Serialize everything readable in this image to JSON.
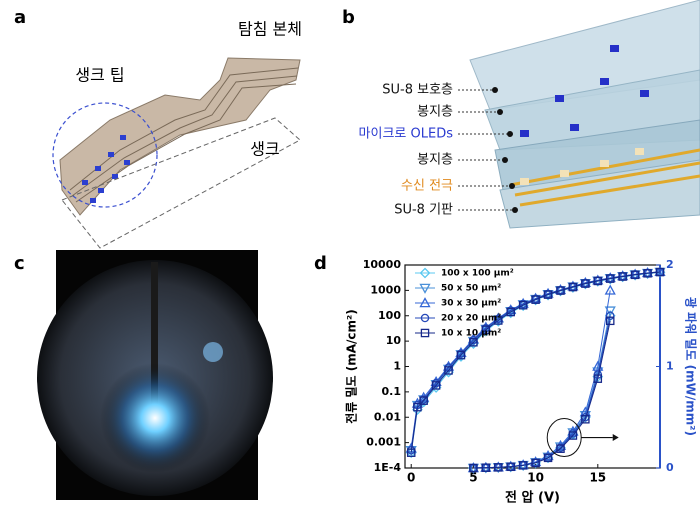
{
  "panels": {
    "a": {
      "label": "a",
      "probe_body": "탐침 본체",
      "shank_tip": "생크 팁",
      "shank": "생크"
    },
    "b": {
      "label": "b",
      "layers": [
        "SU-8 보호층",
        "봉지층",
        "마이크로 OLEDs",
        "봉지층",
        "수신 전극",
        "SU-8 기판"
      ]
    },
    "c": {
      "label": "c"
    },
    "d": {
      "label": "d"
    }
  },
  "chart_data": {
    "type": "line",
    "x_label": "전 압 (V)",
    "y_label": "전류 밀도 (mA/cm²)",
    "y2_label": "광 파워 밀도 (mW/mm²)",
    "log_scale_y": true,
    "xlim": [
      -0.5,
      20
    ],
    "xticks": [
      0,
      5,
      10,
      15
    ],
    "ylim": [
      0.0001,
      10000
    ],
    "yticks": [
      {
        "value": 0.0001,
        "label": "1E-4"
      },
      0.001,
      0.01,
      0.1,
      1,
      10,
      100,
      1000,
      10000
    ],
    "y2lim": [
      0,
      2
    ],
    "y2ticks": [
      0,
      1,
      2
    ],
    "legend": "upper-left",
    "x": [
      0,
      0.5,
      1,
      2,
      3,
      4,
      5,
      6,
      7,
      8,
      9,
      10,
      11,
      12,
      13,
      14,
      15,
      16,
      17,
      18,
      19,
      20
    ],
    "series": [
      {
        "name": "100 x 100 μm²",
        "color": "#5bc8f0",
        "marker": "diamond",
        "values": [
          0.0004,
          0.02,
          0.04,
          0.15,
          0.6,
          2.5,
          8,
          25,
          60,
          130,
          250,
          420,
          650,
          950,
          1300,
          1800,
          2300,
          2800,
          3400,
          4000,
          4600,
          5200
        ],
        "y2_values": [
          null,
          null,
          null,
          null,
          null,
          null,
          0,
          0.003,
          0.006,
          0.012,
          0.025,
          0.05,
          0.1,
          0.2,
          0.33,
          0.5,
          0.9,
          1.5,
          null,
          null,
          null,
          null
        ]
      },
      {
        "name": "50 x 50 μm²",
        "color": "#4a90d9",
        "marker": "triangle-down",
        "values": [
          0.0005,
          0.03,
          0.05,
          0.2,
          0.8,
          3,
          10,
          30,
          70,
          150,
          280,
          450,
          700,
          1000,
          1400,
          1900,
          2400,
          3000,
          3600,
          4200,
          4800,
          5300
        ],
        "y2_values": [
          null,
          null,
          null,
          null,
          null,
          null,
          0,
          0.003,
          0.007,
          0.014,
          0.028,
          0.055,
          0.11,
          0.21,
          0.35,
          0.52,
          0.95,
          1.55,
          null,
          null,
          null,
          null
        ]
      },
      {
        "name": "30 x 30 μm²",
        "color": "#3567d6",
        "marker": "triangle-up",
        "values": [
          0.0006,
          0.035,
          0.06,
          0.25,
          1,
          3.5,
          12,
          35,
          80,
          170,
          300,
          480,
          750,
          1050,
          1450,
          2000,
          2500,
          3100,
          3700,
          4300,
          4900,
          5400
        ],
        "y2_values": [
          null,
          null,
          null,
          null,
          null,
          null,
          0,
          0.004,
          0.008,
          0.015,
          0.03,
          0.06,
          0.12,
          0.22,
          0.36,
          0.55,
          1,
          1.75,
          null,
          null,
          null,
          null
        ]
      },
      {
        "name": "20 x 20 μm²",
        "color": "#2548b8",
        "marker": "circle",
        "values": [
          0.0005,
          0.03,
          0.05,
          0.22,
          0.9,
          3.2,
          11,
          32,
          75,
          160,
          290,
          460,
          720,
          1020,
          1420,
          1950,
          2450,
          3050,
          3650,
          4250,
          4850,
          5350
        ],
        "y2_values": [
          null,
          null,
          null,
          null,
          null,
          null,
          0,
          0.003,
          0.007,
          0.013,
          0.027,
          0.052,
          0.1,
          0.2,
          0.34,
          0.5,
          0.92,
          1.5,
          null,
          null,
          null,
          null
        ]
      },
      {
        "name": "10 x 10 μm²",
        "color": "#16288a",
        "marker": "square",
        "values": [
          0.0004,
          0.025,
          0.045,
          0.18,
          0.7,
          2.8,
          9,
          28,
          65,
          140,
          260,
          430,
          680,
          980,
          1350,
          1850,
          2350,
          2900,
          3500,
          4100,
          4700,
          5250
        ],
        "y2_values": [
          null,
          null,
          null,
          null,
          null,
          null,
          0,
          0.003,
          0.006,
          0.012,
          0.026,
          0.05,
          0.1,
          0.19,
          0.32,
          0.48,
          0.88,
          1.45,
          null,
          null,
          null,
          null
        ]
      }
    ]
  }
}
